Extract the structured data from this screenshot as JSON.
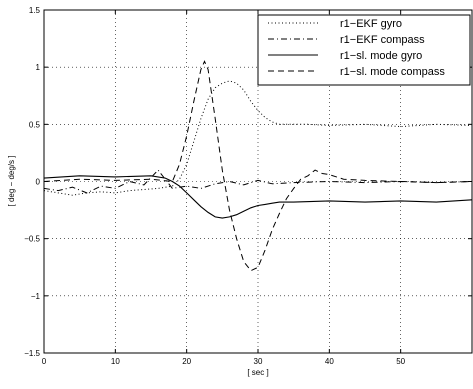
{
  "chart_data": {
    "type": "line",
    "xlabel": "[ sec ]",
    "ylabel": "[ deg − deg/s ]",
    "xlim": [
      0,
      60
    ],
    "ylim": [
      -1.5,
      1.5
    ],
    "x_ticks": [
      "0",
      "10",
      "20",
      "30",
      "40",
      "50"
    ],
    "y_ticks": [
      "−1.5",
      "−1",
      "−0.5",
      "0",
      "0.5",
      "1",
      "1.5"
    ],
    "x_tick_values": [
      0,
      10,
      20,
      30,
      40,
      50
    ],
    "y_tick_values": [
      -1.5,
      -1,
      -0.5,
      0,
      0.5,
      1,
      1.5
    ],
    "grid": true,
    "legend": "top-right",
    "series": [
      {
        "name": "r1−EKF gyro",
        "style": "dotted",
        "x": [
          0,
          2,
          4,
          6,
          8,
          10,
          12,
          14,
          16,
          18,
          19,
          20,
          21,
          22,
          23,
          24,
          25,
          26,
          27,
          28,
          29,
          30,
          31,
          32,
          33,
          35,
          37,
          40,
          45,
          50,
          55,
          60
        ],
        "y": [
          -0.08,
          -0.1,
          -0.12,
          -0.1,
          -0.09,
          -0.1,
          -0.08,
          -0.07,
          -0.06,
          -0.04,
          0.02,
          0.15,
          0.35,
          0.55,
          0.72,
          0.82,
          0.86,
          0.88,
          0.86,
          0.8,
          0.7,
          0.62,
          0.56,
          0.52,
          0.5,
          0.5,
          0.5,
          0.49,
          0.5,
          0.48,
          0.5,
          0.49
        ]
      },
      {
        "name": "r1−EKF compass",
        "style": "dashdot",
        "x": [
          0,
          2,
          4,
          6,
          8,
          10,
          12,
          14,
          16,
          18,
          20,
          22,
          24,
          26,
          28,
          30,
          32,
          35,
          40,
          45,
          50,
          55,
          60
        ],
        "y": [
          -0.06,
          -0.08,
          -0.05,
          -0.1,
          -0.04,
          -0.06,
          0.0,
          -0.03,
          0.1,
          -0.06,
          -0.04,
          -0.06,
          -0.02,
          0.0,
          -0.03,
          0.01,
          -0.02,
          -0.01,
          0.0,
          -0.01,
          0.0,
          -0.01,
          0.0
        ]
      },
      {
        "name": "r1−sl. mode gyro",
        "style": "solid",
        "x": [
          0,
          5,
          10,
          15,
          17,
          18,
          19,
          20,
          21,
          22,
          23,
          24,
          25,
          26,
          27,
          28,
          29,
          30,
          31,
          32,
          33,
          35,
          40,
          45,
          50,
          55,
          60
        ],
        "y": [
          0.03,
          0.05,
          0.04,
          0.05,
          0.03,
          0.0,
          -0.04,
          -0.1,
          -0.16,
          -0.22,
          -0.27,
          -0.31,
          -0.32,
          -0.31,
          -0.29,
          -0.26,
          -0.23,
          -0.21,
          -0.2,
          -0.19,
          -0.18,
          -0.18,
          -0.17,
          -0.18,
          -0.17,
          -0.18,
          -0.16
        ]
      },
      {
        "name": "r1−sl. mode compass",
        "style": "dashed",
        "x": [
          0,
          5,
          10,
          15,
          18,
          19,
          20,
          21,
          22,
          22.5,
          23,
          24,
          25,
          26,
          27,
          28,
          29,
          30,
          31,
          32,
          33,
          34,
          35,
          36,
          37,
          38,
          39,
          40,
          42,
          45,
          50,
          55,
          60
        ],
        "y": [
          0.0,
          0.02,
          0.01,
          0.02,
          0.0,
          0.15,
          0.4,
          0.7,
          0.98,
          1.05,
          0.98,
          0.55,
          0.1,
          -0.25,
          -0.5,
          -0.7,
          -0.78,
          -0.75,
          -0.6,
          -0.42,
          -0.28,
          -0.15,
          -0.06,
          0.02,
          0.05,
          0.1,
          0.07,
          0.06,
          0.02,
          0.01,
          0.0,
          -0.01,
          0.0
        ]
      }
    ]
  }
}
